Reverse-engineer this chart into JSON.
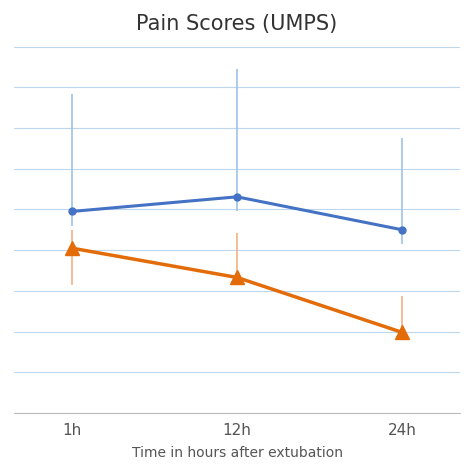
{
  "title": "Pain Scores (UMPS)",
  "xlabel": "Time in hours after extubation",
  "x_labels": [
    "1h",
    "12h",
    "24h"
  ],
  "x_positions": [
    0,
    1,
    2
  ],
  "blue_y": [
    5.5,
    5.9,
    5.0
  ],
  "blue_yerr_upper": [
    3.2,
    3.5,
    2.5
  ],
  "blue_yerr_lower": [
    0.4,
    0.4,
    0.4
  ],
  "orange_y": [
    4.5,
    3.7,
    2.2
  ],
  "orange_yerr_upper": [
    0.5,
    1.2,
    1.0
  ],
  "orange_yerr_lower": [
    1.0,
    0.15,
    0.15
  ],
  "blue_color": "#4472C4",
  "orange_color": "#E36C09",
  "blue_err_color": "#9DC3E6",
  "orange_err_color": "#F4B183",
  "background_color": "#FFFFFF",
  "grid_color": "#BDD7EE",
  "title_fontsize": 15,
  "label_fontsize": 10,
  "tick_fontsize": 11,
  "ylim_min": 0,
  "ylim_max": 10,
  "num_gridlines": 9
}
